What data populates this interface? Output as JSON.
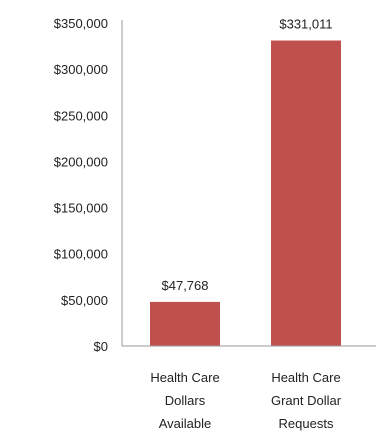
{
  "chart_data": {
    "type": "bar",
    "categories": [
      [
        "Health Care",
        "Dollars",
        "Available"
      ],
      [
        "Health Care",
        "Grant Dollar",
        "Requests"
      ]
    ],
    "values": [
      47768,
      331011
    ],
    "data_labels": [
      "$47,768",
      "$331,011"
    ],
    "ylim": [
      0,
      350000
    ],
    "y_ticks": [
      0,
      50000,
      100000,
      150000,
      200000,
      250000,
      300000,
      350000
    ],
    "y_tick_labels": [
      "$0",
      "$50,000",
      "$100,000",
      "$150,000",
      "$200,000",
      "$250,000",
      "$300,000",
      "$350,000"
    ],
    "bar_color": "#C0504D",
    "axis_color": "#9a9a9a",
    "grid": false,
    "legend": "none"
  }
}
